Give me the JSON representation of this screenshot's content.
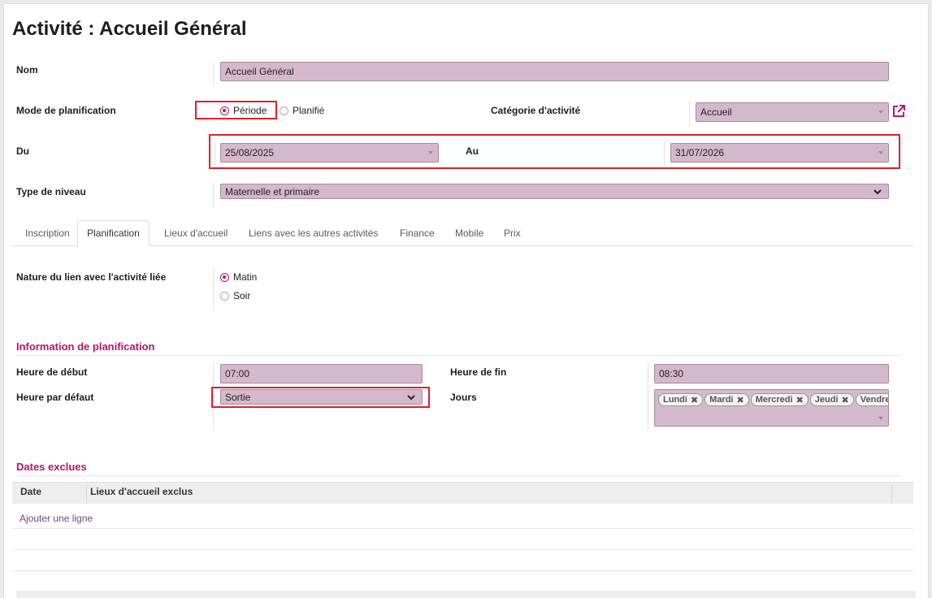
{
  "page": {
    "title": "Activité : Accueil Général"
  },
  "form": {
    "nom": {
      "label": "Nom",
      "value": "Accueil Général"
    },
    "mode": {
      "label": "Mode de planification",
      "options": [
        "Période",
        "Planifié"
      ],
      "selected": "Période"
    },
    "categorie": {
      "label": "Catégorie d'activité",
      "value": "Accueil"
    },
    "du": {
      "label": "Du",
      "value": "25/08/2025"
    },
    "au": {
      "label": "Au",
      "value": "31/07/2026"
    },
    "type_niveau": {
      "label": "Type de niveau",
      "value": "Maternelle et primaire"
    }
  },
  "tabs": [
    {
      "label": "Inscription",
      "active": false
    },
    {
      "label": "Planification",
      "active": true
    },
    {
      "label": "Lieux d'accueil",
      "active": false
    },
    {
      "label": "Liens avec les autres activités",
      "active": false
    },
    {
      "label": "Finance",
      "active": false
    },
    {
      "label": "Mobile",
      "active": false
    },
    {
      "label": "Prix",
      "active": false
    }
  ],
  "planification": {
    "nature": {
      "label": "Nature du lien avec l'activité liée",
      "options": [
        "Matin",
        "Soir"
      ],
      "selected": "Matin"
    },
    "section_title": "Information de planification",
    "heure_debut": {
      "label": "Heure de début",
      "value": "07:00"
    },
    "heure_fin": {
      "label": "Heure de fin",
      "value": "08:30"
    },
    "heure_defaut": {
      "label": "Heure par défaut",
      "value": "Sortie"
    },
    "jours": {
      "label": "Jours",
      "tags": [
        "Lundi",
        "Mardi",
        "Mercredi",
        "Jeudi",
        "Vendredi"
      ]
    }
  },
  "dates_exclues": {
    "section_title": "Dates exclues",
    "columns": [
      "Date",
      "Lieux d'accueil exclus"
    ],
    "add_line": "Ajouter une ligne"
  },
  "colors": {
    "accent": "#b5166b",
    "field_bg": "#d4b9cc",
    "highlight": "#d9232b"
  }
}
